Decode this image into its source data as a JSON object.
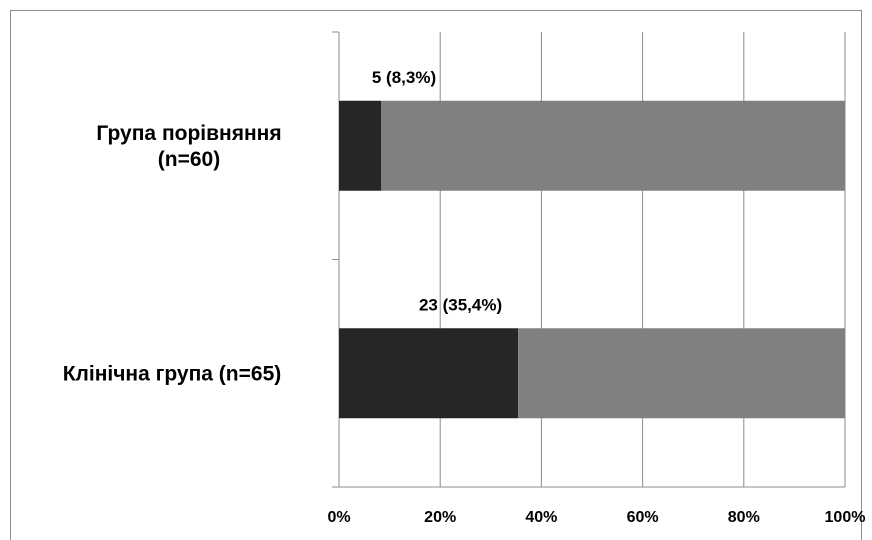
{
  "chart_data": {
    "type": "bar",
    "orientation": "horizontal",
    "stacked": "percent",
    "categories": [
      [
        "Група порівняння",
        "(n=60)"
      ],
      [
        "Клінічна група (n=65)"
      ]
    ],
    "series": [
      {
        "values": [
          8.3,
          35.4
        ],
        "color": "#262626"
      },
      {
        "values": [
          91.7,
          64.6
        ],
        "color": "#808080"
      }
    ],
    "data_labels": [
      "5 (8,3%)",
      "23 (35,4%)"
    ],
    "x_ticks": [
      "0%",
      "20%",
      "40%",
      "60%",
      "80%",
      "100%"
    ],
    "xlim": [
      0,
      100
    ],
    "grid": "vertical",
    "legend": "none"
  }
}
